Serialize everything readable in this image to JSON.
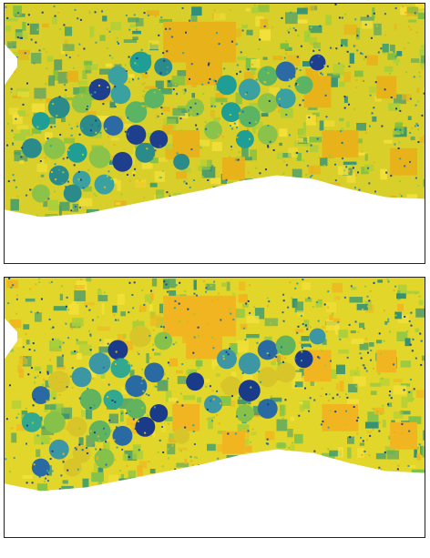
{
  "maps": [
    {
      "id": "top",
      "palette": {
        "background": "#d9cf2a",
        "pivots": [
          "#2b8a8a",
          "#1e9e94",
          "#5bb463",
          "#2c6aa6",
          "#1d3f8e",
          "#8bc34a",
          "#3aa0a0"
        ],
        "urban": "#e8b21a",
        "veg": "#74bd44"
      },
      "blocks": [
        [
          0.3,
          0.02,
          0.12,
          0.1
        ],
        [
          0.55,
          0.15,
          0.08,
          0.06
        ]
      ]
    },
    {
      "id": "bottom",
      "palette": {
        "background": "#e2d62a",
        "pivots": [
          "#32a98f",
          "#3c96a3",
          "#62b35e",
          "#d7c52a",
          "#2a6aa3",
          "#1a3b8a",
          "#86c24a"
        ],
        "urban": "#f0b520",
        "veg": "#7cc24c"
      },
      "blocks": [
        [
          0.33,
          0.01,
          0.14,
          0.08
        ],
        [
          0.58,
          0.18,
          0.1,
          0.05
        ]
      ]
    }
  ]
}
